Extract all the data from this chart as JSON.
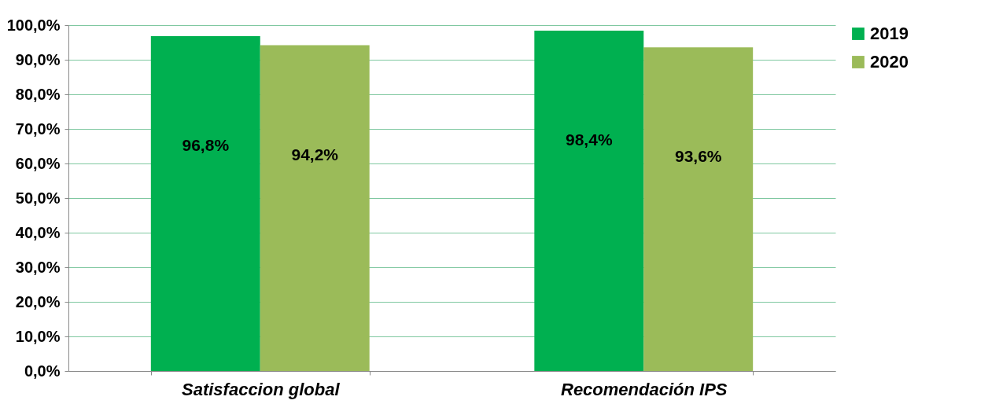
{
  "chart_data": {
    "type": "bar",
    "categories": [
      "Satisfaccion global",
      "Recomendación IPS"
    ],
    "series": [
      {
        "name": "2019",
        "color": "#00b050",
        "values": [
          96.8,
          98.4
        ],
        "value_labels": [
          "96,8%",
          "98,4%"
        ]
      },
      {
        "name": "2020",
        "color": "#9bbb59",
        "values": [
          94.2,
          93.6
        ],
        "value_labels": [
          "94,2%",
          "93,6%"
        ]
      }
    ],
    "ylim": [
      0,
      100
    ],
    "yticks": [
      {
        "value": 0,
        "label": "0,0%"
      },
      {
        "value": 10,
        "label": "10,0%"
      },
      {
        "value": 20,
        "label": "20,0%"
      },
      {
        "value": 30,
        "label": "30,0%"
      },
      {
        "value": 40,
        "label": "40,0%"
      },
      {
        "value": 50,
        "label": "50,0%"
      },
      {
        "value": 60,
        "label": "60,0%"
      },
      {
        "value": 70,
        "label": "70,0%"
      },
      {
        "value": 80,
        "label": "80,0%"
      },
      {
        "value": 90,
        "label": "90,0%"
      },
      {
        "value": 100,
        "label": "100,0%"
      }
    ],
    "grid": "y",
    "legend": "right"
  }
}
